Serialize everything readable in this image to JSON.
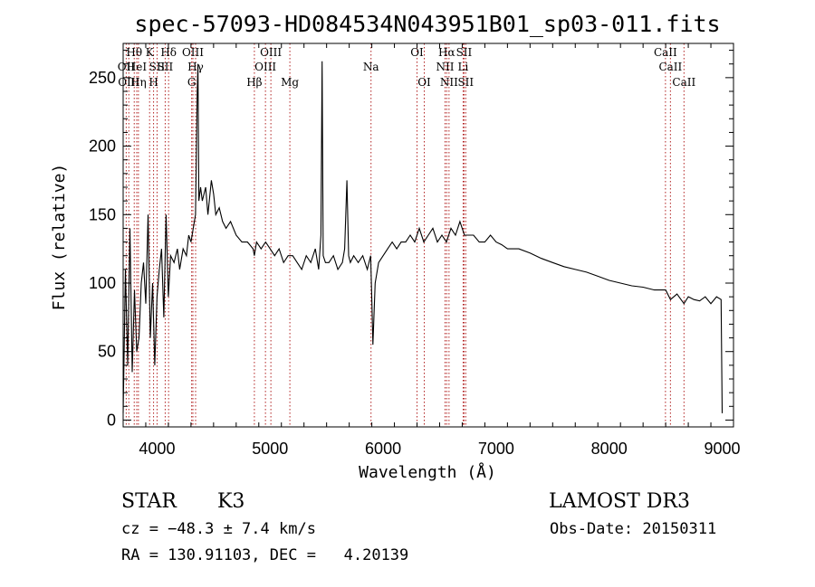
{
  "chart_data": {
    "type": "line",
    "title": "spec-57093-HD084534N043951B01_sp03-011.fits",
    "xlabel": "Wavelength (Å)",
    "ylabel": "Flux (relative)",
    "xlim": [
      3700,
      9100
    ],
    "ylim": [
      -5,
      275
    ],
    "xticks": [
      4000,
      5000,
      6000,
      7000,
      8000,
      9000
    ],
    "xtick_labels": [
      "4000",
      "5000",
      "6000",
      "7000",
      "8000",
      "9000"
    ],
    "yticks": [
      0,
      50,
      100,
      150,
      200,
      250
    ],
    "ytick_labels": [
      "0",
      "50",
      "100",
      "150",
      "200",
      "250"
    ],
    "grid": false,
    "series": [
      {
        "name": "flux",
        "x": [
          3700,
          3720,
          3740,
          3760,
          3780,
          3800,
          3820,
          3840,
          3860,
          3880,
          3900,
          3920,
          3940,
          3960,
          3980,
          4000,
          4020,
          4040,
          4060,
          4080,
          4100,
          4120,
          4150,
          4180,
          4200,
          4230,
          4260,
          4280,
          4300,
          4320,
          4340,
          4355,
          4362,
          4370,
          4385,
          4400,
          4430,
          4450,
          4480,
          4500,
          4520,
          4550,
          4580,
          4610,
          4650,
          4700,
          4750,
          4800,
          4850,
          4861,
          4880,
          4920,
          4960,
          5000,
          5040,
          5080,
          5120,
          5160,
          5200,
          5240,
          5280,
          5320,
          5360,
          5400,
          5430,
          5450,
          5460,
          5470,
          5490,
          5520,
          5560,
          5600,
          5640,
          5660,
          5680,
          5695,
          5710,
          5740,
          5780,
          5820,
          5860,
          5890,
          5900,
          5910,
          5930,
          5960,
          6000,
          6040,
          6080,
          6120,
          6160,
          6200,
          6240,
          6280,
          6320,
          6360,
          6400,
          6440,
          6480,
          6520,
          6560,
          6600,
          6640,
          6680,
          6720,
          6760,
          6800,
          6850,
          6900,
          6950,
          7000,
          7050,
          7100,
          7200,
          7300,
          7400,
          7500,
          7600,
          7700,
          7800,
          7900,
          8000,
          8100,
          8200,
          8300,
          8400,
          8500,
          8542,
          8600,
          8662,
          8700,
          8750,
          8800,
          8850,
          8900,
          8950,
          8990,
          9000
        ],
        "values": [
          5,
          110,
          40,
          140,
          35,
          95,
          50,
          60,
          100,
          115,
          85,
          150,
          60,
          100,
          40,
          90,
          110,
          125,
          75,
          150,
          90,
          120,
          115,
          125,
          110,
          125,
          120,
          135,
          130,
          140,
          150,
          240,
          260,
          160,
          170,
          160,
          170,
          150,
          175,
          165,
          150,
          155,
          145,
          140,
          145,
          135,
          130,
          130,
          125,
          120,
          130,
          125,
          130,
          125,
          120,
          125,
          115,
          120,
          120,
          115,
          110,
          120,
          115,
          125,
          110,
          135,
          262,
          120,
          115,
          115,
          120,
          110,
          115,
          125,
          175,
          120,
          115,
          120,
          115,
          120,
          110,
          120,
          88,
          55,
          100,
          115,
          120,
          125,
          130,
          125,
          130,
          130,
          135,
          130,
          140,
          130,
          135,
          140,
          130,
          135,
          130,
          140,
          135,
          145,
          135,
          135,
          135,
          130,
          130,
          135,
          130,
          128,
          125,
          125,
          122,
          118,
          115,
          112,
          110,
          108,
          105,
          102,
          100,
          98,
          97,
          95,
          95,
          88,
          92,
          85,
          90,
          88,
          87,
          90,
          85,
          90,
          88,
          5
        ]
      }
    ],
    "lines": [
      {
        "name": "Hθ",
        "x": 3798,
        "label_row": 1
      },
      {
        "name": "OII",
        "x": 3727,
        "label_row": 2
      },
      {
        "name": "OIII",
        "x": 3750,
        "label_row": 3
      },
      {
        "name": "HeI",
        "x": 3820,
        "label_row": 2
      },
      {
        "name": "Hη",
        "x": 3835,
        "label_row": 3
      },
      {
        "name": "K",
        "x": 3934,
        "label_row": 1
      },
      {
        "name": "SII",
        "x": 4000,
        "label_row": 2
      },
      {
        "name": "H",
        "x": 3969,
        "label_row": 3
      },
      {
        "name": "Hδ",
        "x": 4102,
        "label_row": 1
      },
      {
        "name": "SII",
        "x": 4072,
        "label_row": 2
      },
      {
        "name": "OIII",
        "x": 4317,
        "label_row": 1
      },
      {
        "name": "Hγ",
        "x": 4341,
        "label_row": 2
      },
      {
        "name": "G",
        "x": 4306,
        "label_row": 3
      },
      {
        "name": "Hβ",
        "x": 4861,
        "label_row": 3
      },
      {
        "name": "OIII",
        "x": 4959,
        "label_row": 2
      },
      {
        "name": "OIII",
        "x": 5007,
        "label_row": 1
      },
      {
        "name": "Mg",
        "x": 5175,
        "label_row": 3
      },
      {
        "name": "Na",
        "x": 5893,
        "label_row": 2
      },
      {
        "name": "OI",
        "x": 6300,
        "label_row": 1
      },
      {
        "name": "OI",
        "x": 6364,
        "label_row": 3
      },
      {
        "name": "Hα",
        "x": 6563,
        "label_row": 1
      },
      {
        "name": "NII",
        "x": 6548,
        "label_row": 2
      },
      {
        "name": "NII",
        "x": 6583,
        "label_row": 3
      },
      {
        "name": "SII",
        "x": 6716,
        "label_row": 1
      },
      {
        "name": "Li",
        "x": 6708,
        "label_row": 2
      },
      {
        "name": "SII",
        "x": 6731,
        "label_row": 3
      },
      {
        "name": "CaII",
        "x": 8498,
        "label_row": 1
      },
      {
        "name": "CaII",
        "x": 8542,
        "label_row": 2
      },
      {
        "name": "CaII",
        "x": 8662,
        "label_row": 3
      }
    ]
  },
  "info": {
    "object_class": "STAR",
    "subclass": "K3",
    "survey": "LAMOST DR3",
    "cz": "cz = −48.3 ± 7.4 km/s",
    "obs_date": "Obs-Date: 20150311",
    "coords": "RA = 130.91103, DEC =   4.20139"
  }
}
